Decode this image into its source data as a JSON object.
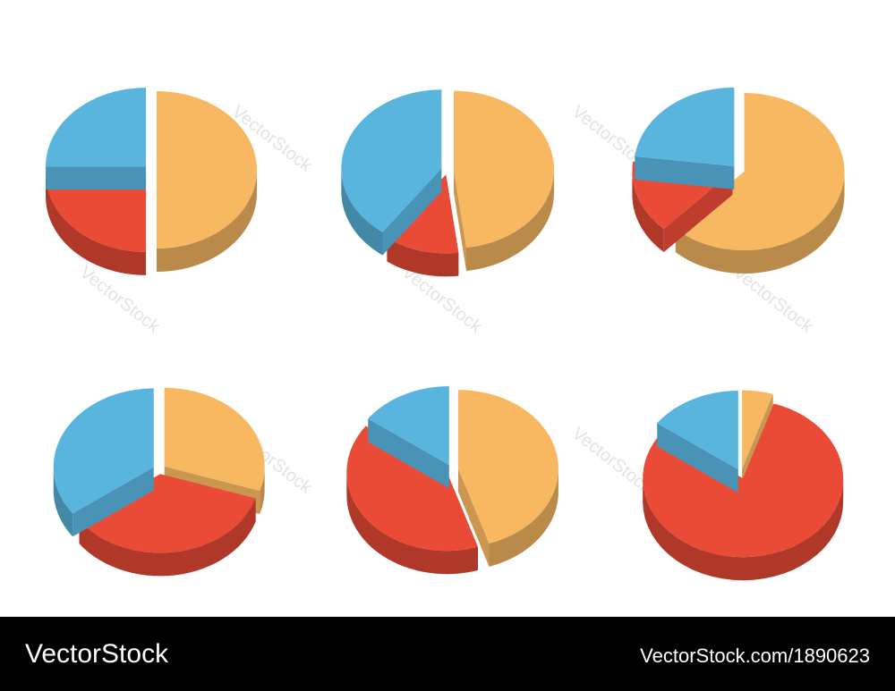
{
  "chart_data": [
    {
      "type": "pie",
      "values": [
        50,
        25,
        25
      ],
      "colors": [
        "#f8b862",
        "#e94b36",
        "#59b5de"
      ]
    },
    {
      "type": "pie",
      "values": [
        48,
        12,
        40
      ],
      "colors": [
        "#f8b862",
        "#e94b36",
        "#59b5de"
      ]
    },
    {
      "type": "pie",
      "values": [
        62,
        15,
        23
      ],
      "colors": [
        "#f8b862",
        "#e94b36",
        "#59b5de"
      ]
    },
    {
      "type": "pie",
      "values": [
        30,
        35,
        35
      ],
      "colors": [
        "#f8b862",
        "#e94b36",
        "#59b5de"
      ]
    },
    {
      "type": "pie",
      "values": [
        45,
        40,
        15
      ],
      "colors": [
        "#f8b862",
        "#e94b36",
        "#59b5de"
      ]
    },
    {
      "type": "pie",
      "values": [
        5,
        80,
        15
      ],
      "colors": [
        "#f8b862",
        "#e94b36",
        "#59b5de"
      ]
    }
  ],
  "watermark": "VectorStock",
  "footer": {
    "brand": "VectorStock",
    "id": "VectorStock.com/1890623"
  }
}
